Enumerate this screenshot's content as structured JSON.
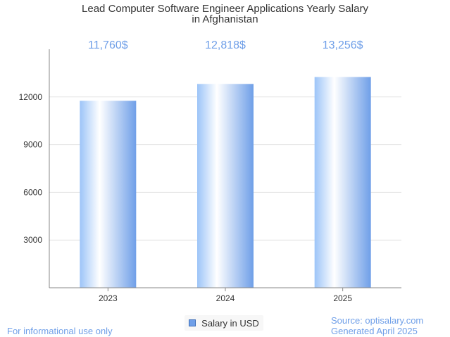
{
  "chart_data": {
    "type": "bar",
    "title": "Lead Computer Software Engineer Applications Yearly Salary in Afghanistan",
    "title_line1": "Lead Computer Software Engineer Applications Yearly Salary",
    "title_line2": "in Afghanistan",
    "categories": [
      "2023",
      "2024",
      "2025"
    ],
    "values": [
      11760,
      12818,
      13256
    ],
    "data_labels": [
      "11,760$",
      "12,818$",
      "13,256$"
    ],
    "yticks": [
      3000,
      6000,
      9000,
      12000
    ],
    "ylim": [
      0,
      15000
    ],
    "series_name": "Salary in USD",
    "colors": {
      "bar_light": "#ffffff",
      "bar_mid": "#bcd6fb",
      "bar_dark": "#6f9fe8",
      "label": "#6f9fe8",
      "grid": "#e3e3e3",
      "axis": "#888888"
    }
  },
  "footer": {
    "left": "For informational use only",
    "source": "Source: optisalary.com",
    "generated": "Generated April 2025"
  }
}
